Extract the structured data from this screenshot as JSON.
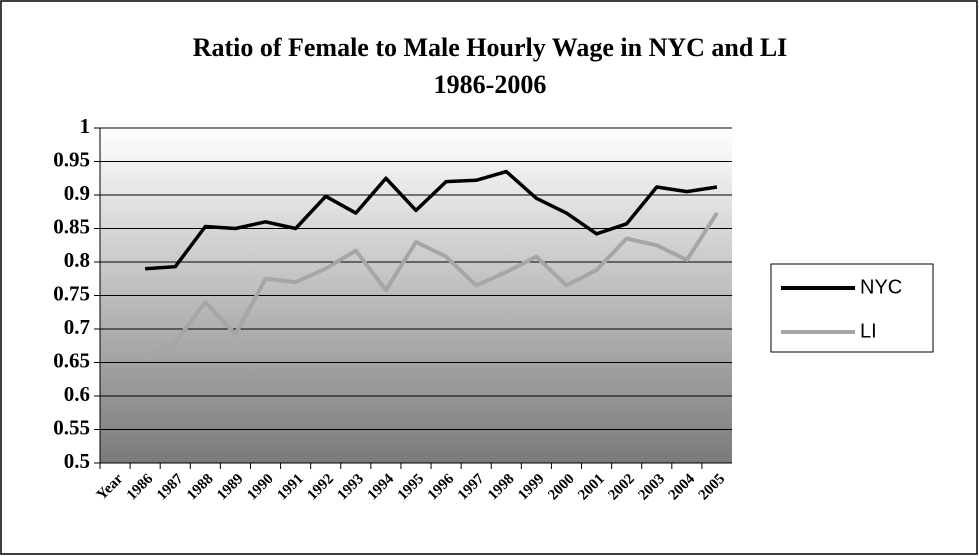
{
  "chart_data": {
    "type": "line",
    "title": "Ratio of Female to Male Hourly Wage in NYC and LI",
    "subtitle": "1986-2006",
    "categories": [
      "Year",
      "1986",
      "1987",
      "1988",
      "1989",
      "1990",
      "1991",
      "1992",
      "1993",
      "1994",
      "1995",
      "1996",
      "1997",
      "1998",
      "1999",
      "2000",
      "2001",
      "2002",
      "2003",
      "2004",
      "2005"
    ],
    "series": [
      {
        "name": "NYC",
        "color": "#000000",
        "values": [
          null,
          0.79,
          0.793,
          0.853,
          0.85,
          0.86,
          0.85,
          0.898,
          0.873,
          0.925,
          0.877,
          0.92,
          0.922,
          0.935,
          0.895,
          0.873,
          0.842,
          0.857,
          0.912,
          0.905,
          0.912
        ]
      },
      {
        "name": "LI",
        "color": "#a6a6a6",
        "values": [
          null,
          0.655,
          0.68,
          0.74,
          0.692,
          0.775,
          0.77,
          0.79,
          0.817,
          0.758,
          0.83,
          0.808,
          0.765,
          0.785,
          0.808,
          0.765,
          0.788,
          0.835,
          0.825,
          0.803,
          0.873
        ]
      }
    ],
    "ylim": [
      0.5,
      1
    ],
    "yticks": [
      0.5,
      0.55,
      0.6,
      0.65,
      0.7,
      0.75,
      0.8,
      0.85,
      0.9,
      0.95,
      1
    ],
    "grid": true,
    "legend": "right"
  }
}
